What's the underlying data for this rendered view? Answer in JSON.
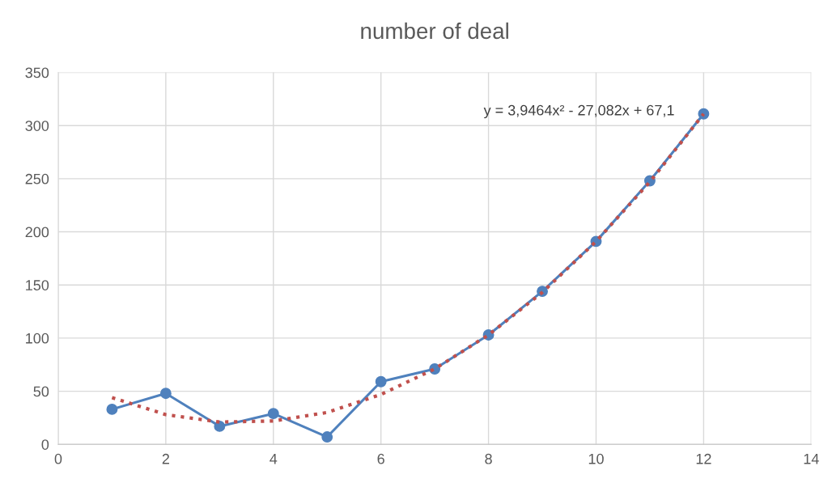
{
  "chart_data": {
    "type": "line",
    "title": "number of deal",
    "x": [
      1,
      2,
      3,
      4,
      5,
      6,
      7,
      8,
      9,
      10,
      11,
      12
    ],
    "series": [
      {
        "color": "#4f81bd",
        "values": [
          33,
          48,
          17,
          29,
          7,
          59,
          71,
          103,
          144,
          191,
          248,
          311
        ],
        "marker": "circle",
        "line_style": "solid"
      },
      {
        "color": "#c0504d",
        "values": [
          44,
          28,
          21,
          22,
          30,
          47,
          71,
          103,
          143,
          191,
          247,
          311
        ],
        "marker": "none",
        "line_style": "dotted"
      }
    ],
    "xlim": [
      0,
      14
    ],
    "xticks": [
      0,
      2,
      4,
      6,
      8,
      10,
      12,
      14
    ],
    "ylim": [
      0,
      350
    ],
    "yticks": [
      0,
      50,
      100,
      150,
      200,
      250,
      300,
      350
    ],
    "grid": true,
    "legend": false,
    "annotations": [
      "y = 3,9464x² - 27,082x + 67,1"
    ]
  }
}
